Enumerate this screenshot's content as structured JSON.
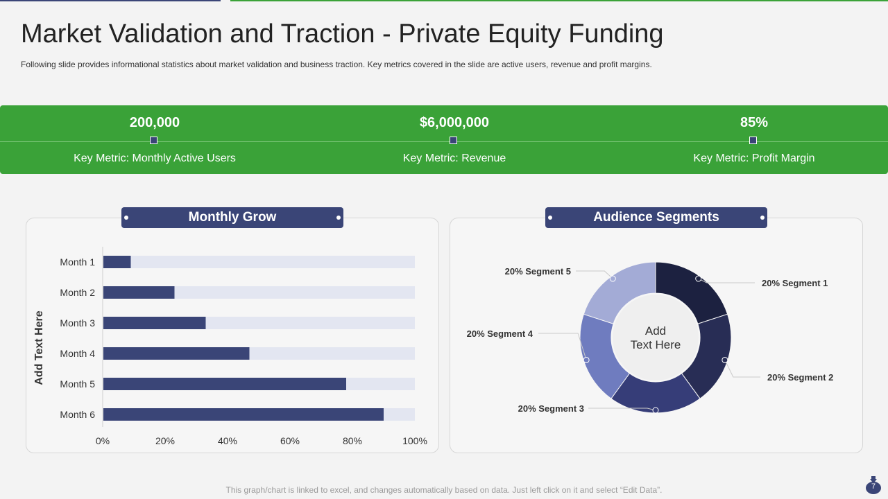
{
  "slide": {
    "title": "Market Validation and Traction - Private Equity Funding",
    "subtitle": "Following slide provides informational statistics about market validation and business traction. Key metrics covered in the slide are active users, revenue and profit margins.",
    "footer": "This graph/chart is linked to excel, and changes automatically based on data. Just left click on it and select “Edit Data”.",
    "page_number": "7",
    "page_icon": "money-bag-icon"
  },
  "metrics": [
    {
      "value": "200,000",
      "label": "Key Metric: Monthly  Active Users"
    },
    {
      "value": "$6,000,000",
      "label": "Key Metric: Revenue"
    },
    {
      "value": "85%",
      "label": "Key Metric: Profit Margin"
    }
  ],
  "colors": {
    "green": "#3aa238",
    "navy": "#3a4577",
    "bar_track": "#e3e6f1",
    "segments": [
      "#1c2140",
      "#282d55",
      "#363d78",
      "#6f7cbf",
      "#a3abd6"
    ]
  },
  "chart_data": [
    {
      "type": "bar",
      "orientation": "horizontal",
      "title": "Monthly Grow",
      "ylabel": "Add Text Here",
      "xlabel": "",
      "categories": [
        "Month 1",
        "Month 2",
        "Month 3",
        "Month 4",
        "Month 5",
        "Month 6"
      ],
      "values": [
        9,
        23,
        33,
        47,
        78,
        90
      ],
      "xlim": [
        0,
        100
      ],
      "x_ticks": [
        "0%",
        "20%",
        "40%",
        "60%",
        "80%",
        "100%"
      ],
      "grid": false,
      "legend": "none"
    },
    {
      "type": "pie",
      "donut": true,
      "title": "Audience Segments",
      "center_text": "Add Text Here",
      "labels": [
        "Segment 1",
        "Segment 2",
        "Segment 3",
        "Segment 4",
        "Segment 5"
      ],
      "values": [
        20,
        20,
        20,
        20,
        20
      ],
      "data_labels": [
        "20% Segment 1",
        "20% Segment 2",
        "20% Segment 3",
        "20% Segment 4",
        "20% Segment 5"
      ],
      "legend": "none"
    }
  ]
}
